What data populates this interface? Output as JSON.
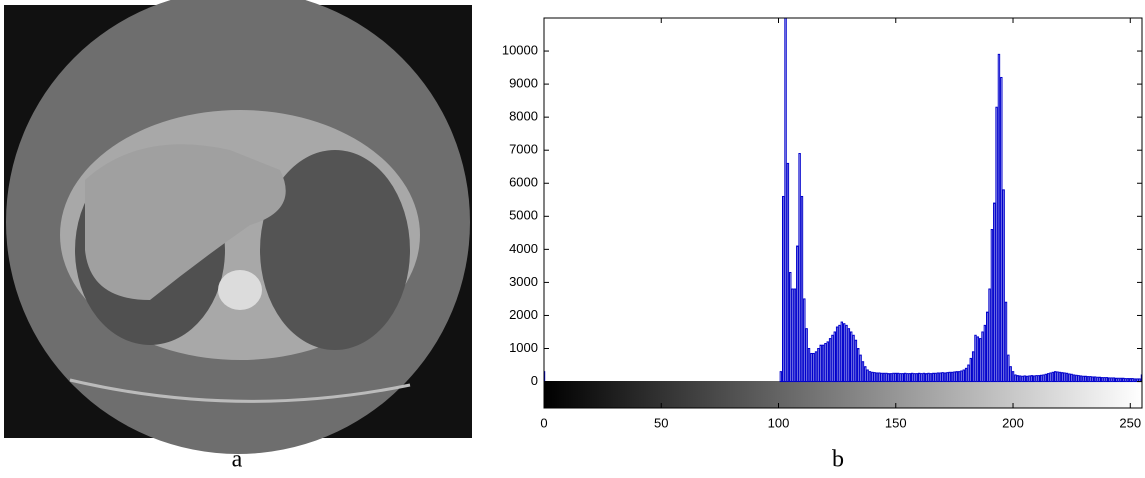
{
  "panel_labels": [
    "a",
    "b"
  ],
  "chart_data": {
    "type": "bar",
    "color": "#0000cc",
    "x": [
      0,
      101,
      102,
      103,
      104,
      105,
      106,
      107,
      108,
      109,
      110,
      111,
      112,
      113,
      114,
      115,
      116,
      117,
      118,
      119,
      120,
      121,
      122,
      123,
      124,
      125,
      126,
      127,
      128,
      129,
      130,
      131,
      132,
      133,
      134,
      135,
      136,
      137,
      138,
      139,
      140,
      141,
      142,
      143,
      144,
      145,
      146,
      147,
      148,
      149,
      150,
      151,
      152,
      153,
      154,
      155,
      156,
      157,
      158,
      159,
      160,
      161,
      162,
      163,
      164,
      165,
      166,
      167,
      168,
      169,
      170,
      171,
      172,
      173,
      174,
      175,
      176,
      177,
      178,
      179,
      180,
      181,
      182,
      183,
      184,
      185,
      186,
      187,
      188,
      189,
      190,
      191,
      192,
      193,
      194,
      195,
      196,
      197,
      198,
      199,
      200,
      201,
      202,
      203,
      204,
      205,
      206,
      207,
      208,
      209,
      210,
      211,
      212,
      213,
      214,
      215,
      216,
      217,
      218,
      219,
      220,
      221,
      222,
      223,
      224,
      225,
      226,
      227,
      228,
      229,
      230,
      231,
      232,
      233,
      234,
      235,
      236,
      237,
      238,
      239,
      240,
      241,
      242,
      243,
      244,
      245,
      246,
      247,
      248,
      249,
      250,
      251,
      252,
      253,
      254,
      255
    ],
    "values": [
      300,
      300,
      5600,
      11000,
      6600,
      3300,
      2800,
      2800,
      4100,
      6900,
      5600,
      2500,
      1600,
      1000,
      850,
      850,
      900,
      1000,
      1100,
      1100,
      1150,
      1200,
      1300,
      1400,
      1500,
      1650,
      1700,
      1800,
      1750,
      1700,
      1600,
      1500,
      1400,
      1250,
      1000,
      800,
      600,
      450,
      350,
      300,
      280,
      270,
      260,
      260,
      250,
      250,
      250,
      240,
      240,
      250,
      250,
      250,
      240,
      240,
      250,
      240,
      240,
      250,
      240,
      240,
      250,
      240,
      250,
      240,
      250,
      240,
      250,
      250,
      260,
      260,
      270,
      260,
      270,
      280,
      280,
      290,
      300,
      300,
      320,
      350,
      400,
      500,
      700,
      900,
      1400,
      1350,
      1300,
      1500,
      1700,
      2100,
      2800,
      4600,
      5400,
      8300,
      9900,
      9200,
      5800,
      2400,
      800,
      450,
      300,
      200,
      180,
      170,
      160,
      170,
      160,
      170,
      180,
      170,
      180,
      180,
      190,
      200,
      220,
      240,
      260,
      280,
      300,
      290,
      280,
      270,
      260,
      250,
      230,
      220,
      200,
      190,
      180,
      170,
      160,
      160,
      150,
      150,
      140,
      140,
      130,
      130,
      120,
      120,
      120,
      110,
      110,
      110,
      100,
      100,
      100,
      100,
      90,
      90,
      90,
      90,
      80,
      80,
      80,
      200
    ],
    "xlim": [
      0,
      255
    ],
    "ylim": [
      -800,
      11000
    ],
    "xticks": [
      0,
      50,
      100,
      150,
      200,
      250
    ],
    "yticks": [
      0,
      1000,
      2000,
      3000,
      4000,
      5000,
      6000,
      7000,
      8000,
      9000,
      10000
    ]
  }
}
